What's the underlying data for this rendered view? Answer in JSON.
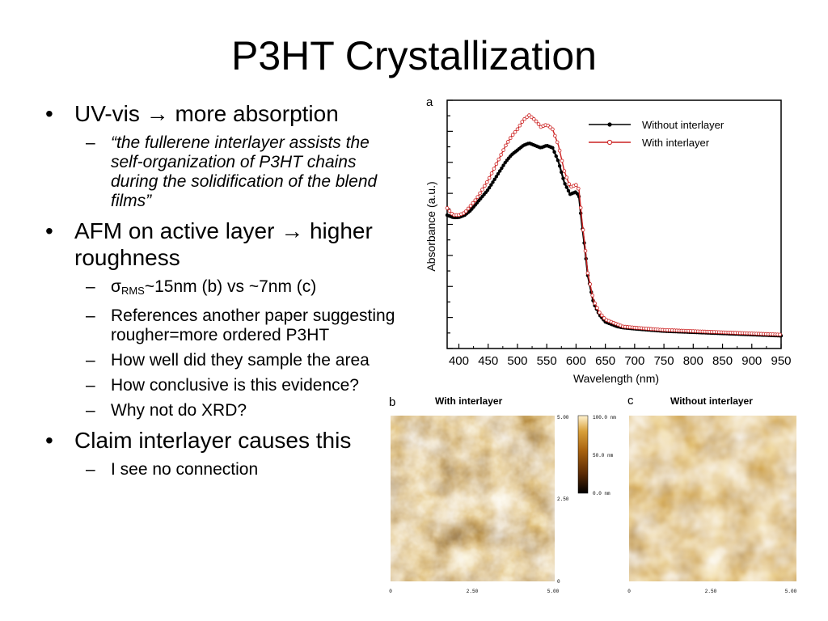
{
  "slide": {
    "title": "P3HT Crystallization",
    "bullets": [
      {
        "text": "UV-vis → more absorption",
        "sub": [
          {
            "text": "“the fullerene interlayer assists the self-organization of P3HT chains during the solidification of the blend films”",
            "italic": true
          }
        ]
      },
      {
        "text": "AFM on active layer → higher roughness",
        "sub": [
          {
            "sigma": "σ",
            "sigma_sub": "RMS",
            "text": "~15nm (b) vs ~7nm (c)"
          },
          {
            "text": "References another paper suggesting rougher=more ordered P3HT"
          },
          {
            "text": "How well did they sample the area"
          },
          {
            "text": "How conclusive is this evidence?"
          },
          {
            "text": "Why not do XRD?"
          }
        ]
      },
      {
        "text": "Claim interlayer causes this",
        "sub": [
          {
            "text": "I see no connection"
          }
        ]
      }
    ]
  },
  "chart_data": {
    "type": "scatter",
    "panel_label": "a",
    "xlabel": "Wavelength (nm)",
    "ylabel": "Absorbance (a.u.)",
    "xlim": [
      380,
      950
    ],
    "ylim": [
      0,
      1
    ],
    "x_ticks": [
      400,
      450,
      500,
      550,
      600,
      650,
      700,
      750,
      800,
      850,
      900,
      950
    ],
    "legend_position": "top-right",
    "series": [
      {
        "name": "Without interlayer",
        "color": "#000000",
        "marker": "filled-circle",
        "x": [
          380,
          390,
          400,
          410,
          420,
          430,
          440,
          450,
          460,
          470,
          480,
          490,
          500,
          510,
          520,
          530,
          540,
          550,
          560,
          570,
          580,
          590,
          600,
          605,
          610,
          615,
          620,
          630,
          640,
          650,
          660,
          670,
          680,
          700,
          750,
          800,
          850,
          900,
          950
        ],
        "y": [
          0.54,
          0.53,
          0.53,
          0.54,
          0.56,
          0.59,
          0.62,
          0.65,
          0.69,
          0.73,
          0.77,
          0.8,
          0.82,
          0.84,
          0.85,
          0.84,
          0.83,
          0.84,
          0.83,
          0.77,
          0.68,
          0.63,
          0.64,
          0.62,
          0.5,
          0.4,
          0.28,
          0.16,
          0.11,
          0.08,
          0.07,
          0.06,
          0.055,
          0.05,
          0.04,
          0.035,
          0.03,
          0.025,
          0.02
        ]
      },
      {
        "name": "With interlayer",
        "color": "#cc2222",
        "marker": "open-circle",
        "x": [
          380,
          390,
          400,
          410,
          420,
          430,
          440,
          450,
          460,
          470,
          480,
          490,
          500,
          510,
          520,
          530,
          540,
          550,
          560,
          570,
          580,
          590,
          600,
          605,
          610,
          615,
          620,
          630,
          640,
          650,
          660,
          670,
          680,
          700,
          750,
          800,
          850,
          900,
          950
        ],
        "y": [
          0.57,
          0.54,
          0.54,
          0.55,
          0.58,
          0.61,
          0.65,
          0.69,
          0.74,
          0.79,
          0.84,
          0.88,
          0.91,
          0.95,
          0.97,
          0.95,
          0.92,
          0.93,
          0.91,
          0.84,
          0.73,
          0.66,
          0.67,
          0.65,
          0.52,
          0.41,
          0.29,
          0.17,
          0.12,
          0.09,
          0.08,
          0.07,
          0.06,
          0.055,
          0.045,
          0.04,
          0.035,
          0.03,
          0.025
        ]
      }
    ]
  },
  "afm": {
    "b": {
      "label": "b",
      "title": "With interlayer",
      "y_ticks": [
        "5.00",
        "2.50",
        "0"
      ],
      "x_ticks": [
        "0",
        "2.50",
        "5.00"
      ]
    },
    "c": {
      "label": "c",
      "title": "Without interlayer",
      "x_ticks": [
        "0",
        "2.50",
        "5.00"
      ]
    },
    "colorbar_ticks": [
      "100.0 nm",
      "50.0 nm",
      "0.0 nm"
    ],
    "colors": [
      "#000000",
      "#5a2a05",
      "#a8620f",
      "#d9a03a",
      "#fff3d0",
      "#ffffff"
    ]
  }
}
